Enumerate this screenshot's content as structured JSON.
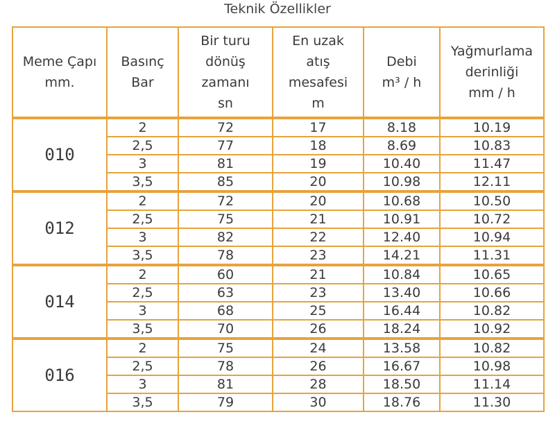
{
  "title": "Teknik Özellikler",
  "table": {
    "headers": [
      [
        "Meme Çapı",
        "mm."
      ],
      [
        "Basınç",
        "Bar"
      ],
      [
        "Bir turu",
        "dönüş",
        "zamanı",
        "sn"
      ],
      [
        "En uzak",
        "atış",
        "mesafesi",
        "m"
      ],
      [
        "Debi",
        "m³ / h"
      ],
      [
        "Yağmurlama",
        "derinliği",
        "mm / h"
      ]
    ],
    "groups": [
      {
        "label": "010",
        "rows": [
          [
            "2",
            "72",
            "17",
            "8.18",
            "10.19"
          ],
          [
            "2,5",
            "77",
            "18",
            "8.69",
            "10.83"
          ],
          [
            "3",
            "81",
            "19",
            "10.40",
            "11.47"
          ],
          [
            "3,5",
            "85",
            "20",
            "10.98",
            "12.11"
          ]
        ]
      },
      {
        "label": "012",
        "rows": [
          [
            "2",
            "72",
            "20",
            "10.68",
            "10.50"
          ],
          [
            "2,5",
            "75",
            "21",
            "10.91",
            "10.72"
          ],
          [
            "3",
            "82",
            "22",
            "12.40",
            "10.94"
          ],
          [
            "3,5",
            "78",
            "23",
            "14.21",
            "11.31"
          ]
        ]
      },
      {
        "label": "014",
        "rows": [
          [
            "2",
            "60",
            "21",
            "10.84",
            "10.65"
          ],
          [
            "2,5",
            "63",
            "23",
            "13.40",
            "10.66"
          ],
          [
            "3",
            "68",
            "25",
            "16.44",
            "10.82"
          ],
          [
            "3,5",
            "70",
            "26",
            "18.24",
            "10.92"
          ]
        ]
      },
      {
        "label": "016",
        "rows": [
          [
            "2",
            "75",
            "24",
            "13.58",
            "10.82"
          ],
          [
            "2,5",
            "78",
            "26",
            "16.67",
            "10.98"
          ],
          [
            "3",
            "81",
            "28",
            "18.50",
            "11.14"
          ],
          [
            "3,5",
            "79",
            "30",
            "18.76",
            "11.30"
          ]
        ]
      }
    ]
  }
}
